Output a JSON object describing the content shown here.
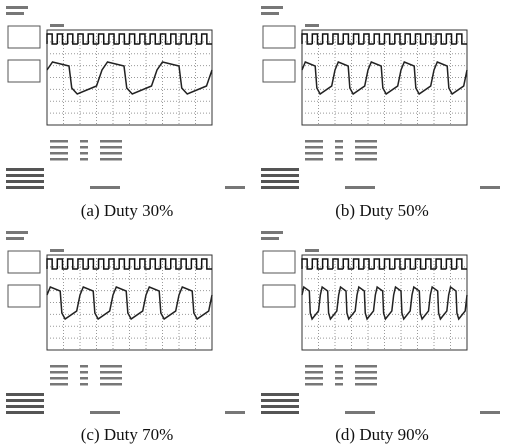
{
  "figure": {
    "captions": [
      "(a) Duty 30%",
      "(b) Duty 50%",
      "(c) Duty 70%",
      "(d) Duty 90%"
    ]
  }
}
